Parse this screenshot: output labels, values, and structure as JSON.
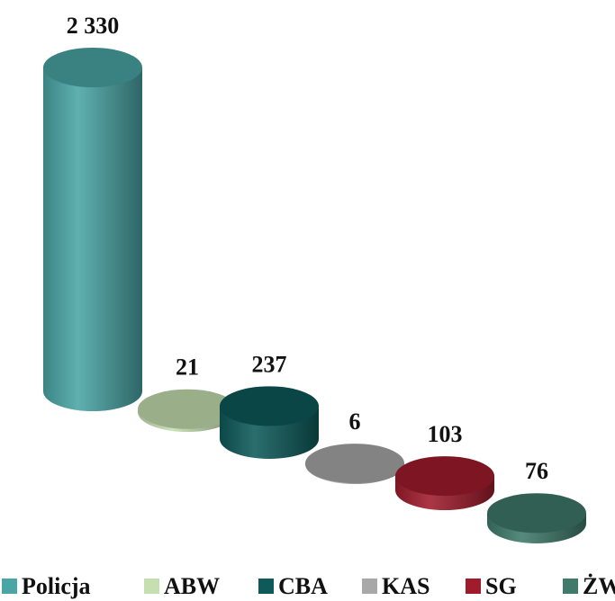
{
  "chart_data": {
    "type": "bar3d",
    "categories": [
      "Policja",
      "ABW",
      "CBA",
      "KAS",
      "SG",
      "ŻW"
    ],
    "values": [
      2330,
      21,
      237,
      6,
      103,
      76
    ],
    "value_labels": [
      "2 330",
      "21",
      "237",
      "6",
      "103",
      "76"
    ],
    "colors": [
      "#4aa5a5",
      "#c5dfb0",
      "#0e5a5a",
      "#a8a8a8",
      "#a01c2c",
      "#3f7a6a"
    ],
    "legend": "bottom"
  }
}
